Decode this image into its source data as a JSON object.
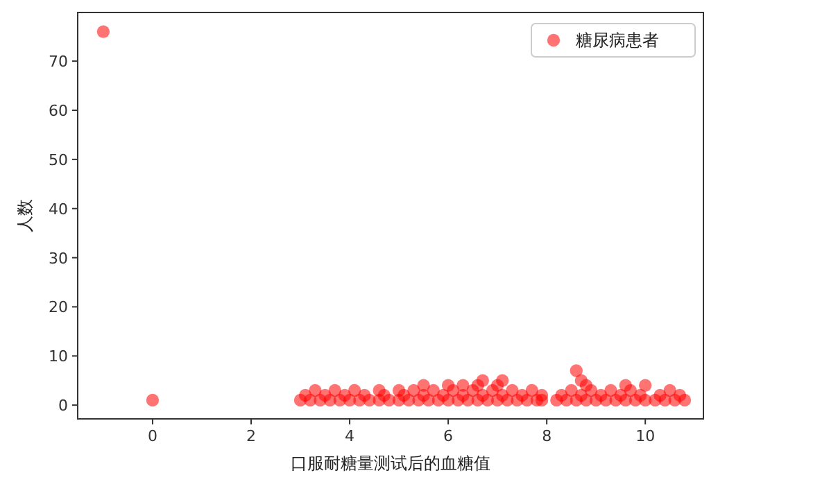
{
  "chart_data": {
    "type": "scatter",
    "xlabel": "口服耐糖量测试后的血糖值",
    "ylabel": "人数",
    "xlim": [
      -1.52,
      11.18
    ],
    "ylim": [
      -2.8,
      79.9
    ],
    "xticks": [
      0,
      2,
      4,
      6,
      8,
      10
    ],
    "yticks": [
      0,
      10,
      20,
      30,
      40,
      50,
      60,
      70
    ],
    "legend": "top right",
    "grid": false,
    "marker": "circle",
    "series": [
      {
        "name": "糖尿病患者",
        "color": "#ff0000",
        "x": [
          -1,
          0,
          3.0,
          3.2,
          3.4,
          3.6,
          3.8,
          4.0,
          4.2,
          4.4,
          4.6,
          4.8,
          5.0,
          5.2,
          5.4,
          5.6,
          5.8,
          6.0,
          6.2,
          6.4,
          6.6,
          6.8,
          7.0,
          7.2,
          7.4,
          7.6,
          7.8,
          7.9,
          8.2,
          8.4,
          8.6,
          8.8,
          9.0,
          9.2,
          9.4,
          9.6,
          9.8,
          10.0,
          10.2,
          10.4,
          10.6,
          10.8,
          3.1,
          3.5,
          3.9,
          4.3,
          4.7,
          5.1,
          5.5,
          5.9,
          6.3,
          6.7,
          7.1,
          7.5,
          7.9,
          8.3,
          8.7,
          9.1,
          9.5,
          9.9,
          10.3,
          10.7,
          3.3,
          3.7,
          4.1,
          4.6,
          5.0,
          5.3,
          5.7,
          6.1,
          6.5,
          6.9,
          7.3,
          7.7,
          8.5,
          8.9,
          9.3,
          9.7,
          10.5,
          5.5,
          6.0,
          6.3,
          6.6,
          7.0,
          8.8,
          9.6,
          10.0,
          6.7,
          7.1,
          8.7,
          8.6
        ],
        "values": [
          76,
          1,
          1,
          1,
          1,
          1,
          1,
          1,
          1,
          1,
          1,
          1,
          1,
          1,
          1,
          1,
          1,
          1,
          1,
          1,
          1,
          1,
          1,
          1,
          1,
          1,
          1,
          1,
          1,
          1,
          1,
          1,
          1,
          1,
          1,
          1,
          1,
          1,
          1,
          1,
          1,
          1,
          2,
          2,
          2,
          2,
          2,
          2,
          2,
          2,
          2,
          2,
          2,
          2,
          2,
          2,
          2,
          2,
          2,
          2,
          2,
          2,
          3,
          3,
          3,
          3,
          3,
          3,
          3,
          3,
          3,
          3,
          3,
          3,
          3,
          3,
          3,
          3,
          3,
          4,
          4,
          4,
          4,
          4,
          4,
          4,
          4,
          5,
          5,
          5,
          7
        ]
      }
    ]
  }
}
